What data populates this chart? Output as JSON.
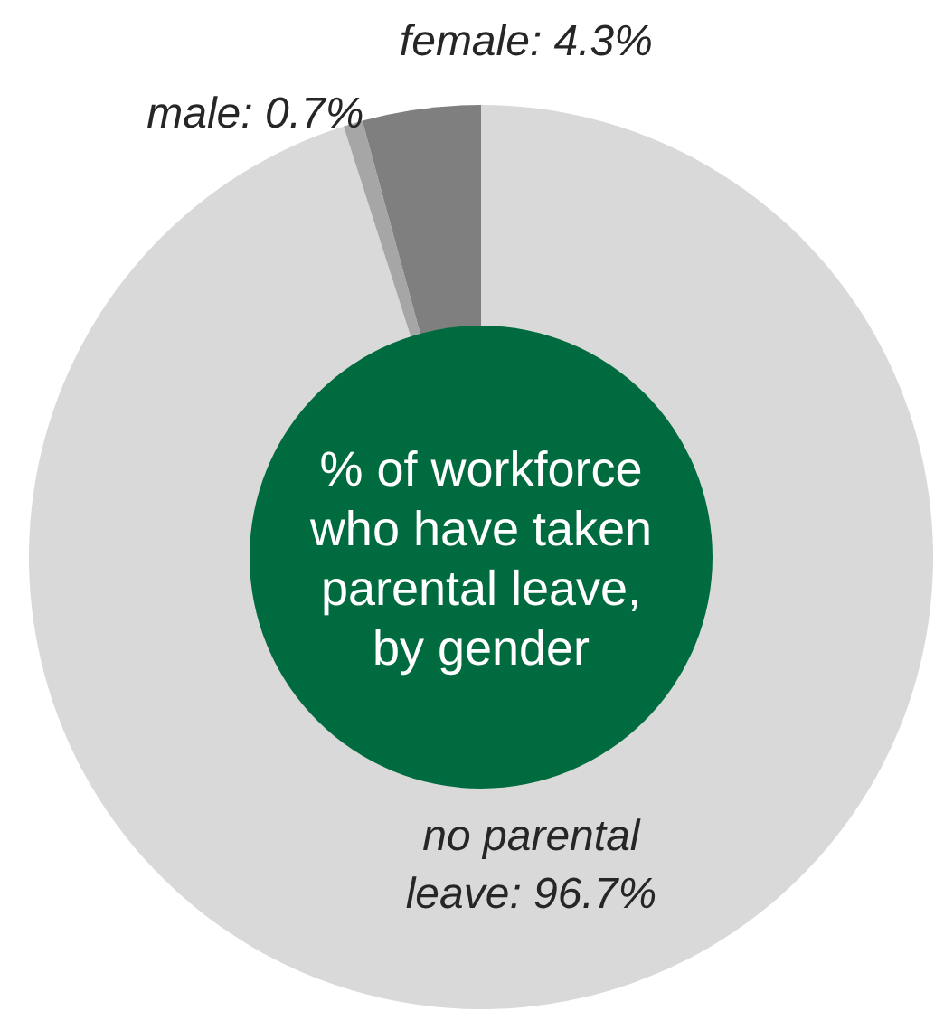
{
  "chart_data": {
    "type": "donut",
    "title": "% of workforce who have taken parental leave, by gender",
    "categories": [
      "no parental leave",
      "male",
      "female"
    ],
    "values": [
      96.7,
      0.7,
      4.3
    ],
    "colors": [
      "#d9d9d9",
      "#a6a6a6",
      "#7f7f7f"
    ],
    "value_labels": [
      "96.7%",
      "0.7%",
      "4.3%"
    ]
  }
}
